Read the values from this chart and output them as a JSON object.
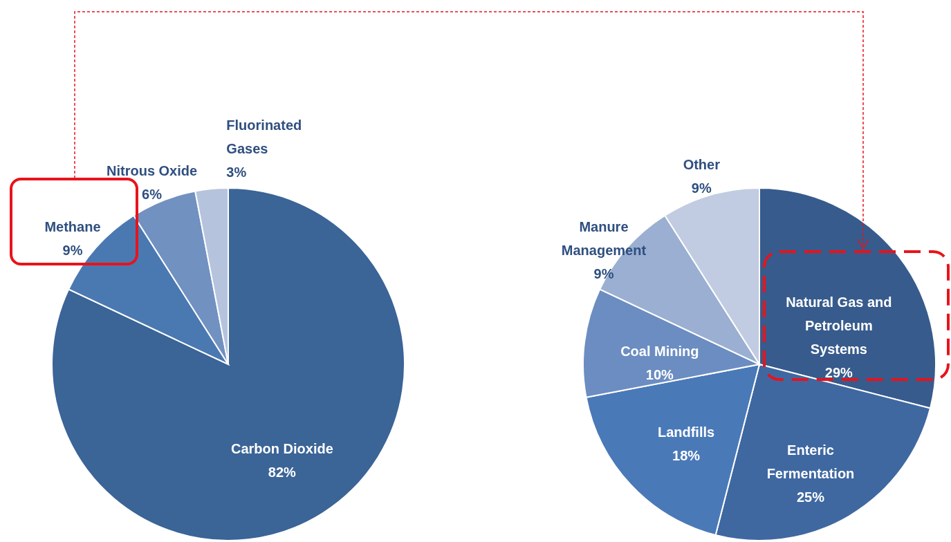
{
  "chart_data": [
    {
      "type": "pie",
      "categories": [
        "Carbon Dioxide",
        "Methane",
        "Nitrous Oxide",
        "Fluorinated Gases"
      ],
      "values": [
        82,
        9,
        6,
        3
      ],
      "value_labels": [
        "82%",
        "9%",
        "6%",
        "3%"
      ],
      "colors": [
        "#3b6497",
        "#4a79b2",
        "#7191c1",
        "#b5c3dd"
      ]
    },
    {
      "type": "pie",
      "categories": [
        "Natural Gas and Petroleum Systems",
        "Enteric Fermentation",
        "Landfills",
        "Coal Mining",
        "Manure Management",
        "Other"
      ],
      "values": [
        29,
        25,
        18,
        10,
        9,
        9
      ],
      "value_labels": [
        "29%",
        "25%",
        "18%",
        "10%",
        "9%",
        "9%"
      ],
      "colors": [
        "#375b8c",
        "#3f68a1",
        "#4a79b8",
        "#6b8dc1",
        "#9aafd1",
        "#c1cce2"
      ]
    }
  ]
}
